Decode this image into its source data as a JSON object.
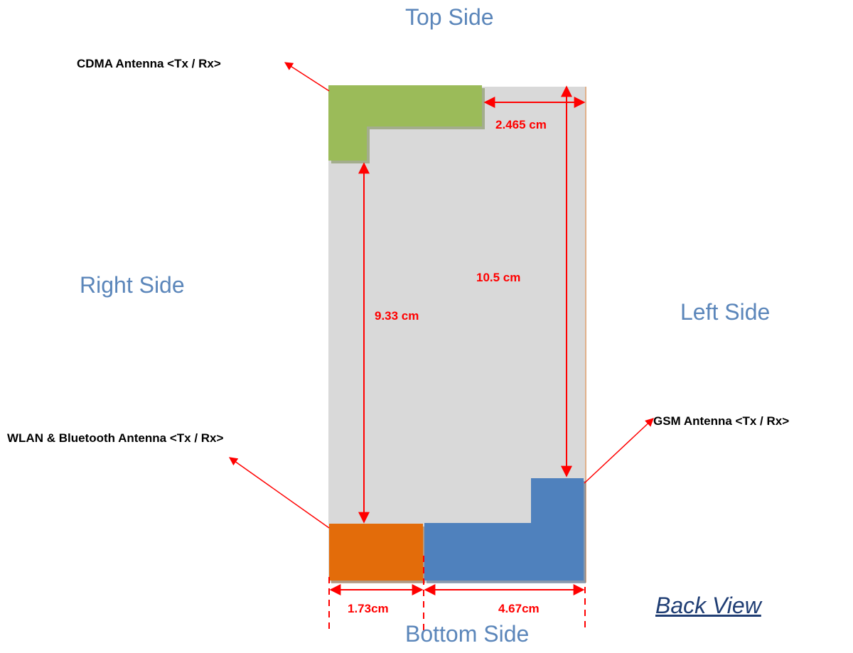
{
  "sides": {
    "top": "Top Side",
    "bottom": "Bottom Side",
    "right": "Right Side",
    "left": "Left Side"
  },
  "view_label": "Back View",
  "antennas": {
    "cdma": {
      "label": "CDMA Antenna <Tx / Rx>",
      "color": "#9bbb59"
    },
    "wlan": {
      "label": "WLAN & Bluetooth Antenna <Tx / Rx>",
      "color": "#e36c0a"
    },
    "gsm": {
      "label": "GSM Antenna <Tx / Rx>",
      "color": "#4f81bd"
    }
  },
  "dimensions": {
    "cdma_offset": "2.465 cm",
    "total_length": "10.5 cm",
    "cdma_to_wlan": "9.33 cm",
    "wlan_width": "1.73cm",
    "gsm_width": "4.67cm"
  },
  "colors": {
    "board": "#d9d9d9",
    "dimension_line": "#ff0000",
    "side_text": "#5b86ba"
  }
}
